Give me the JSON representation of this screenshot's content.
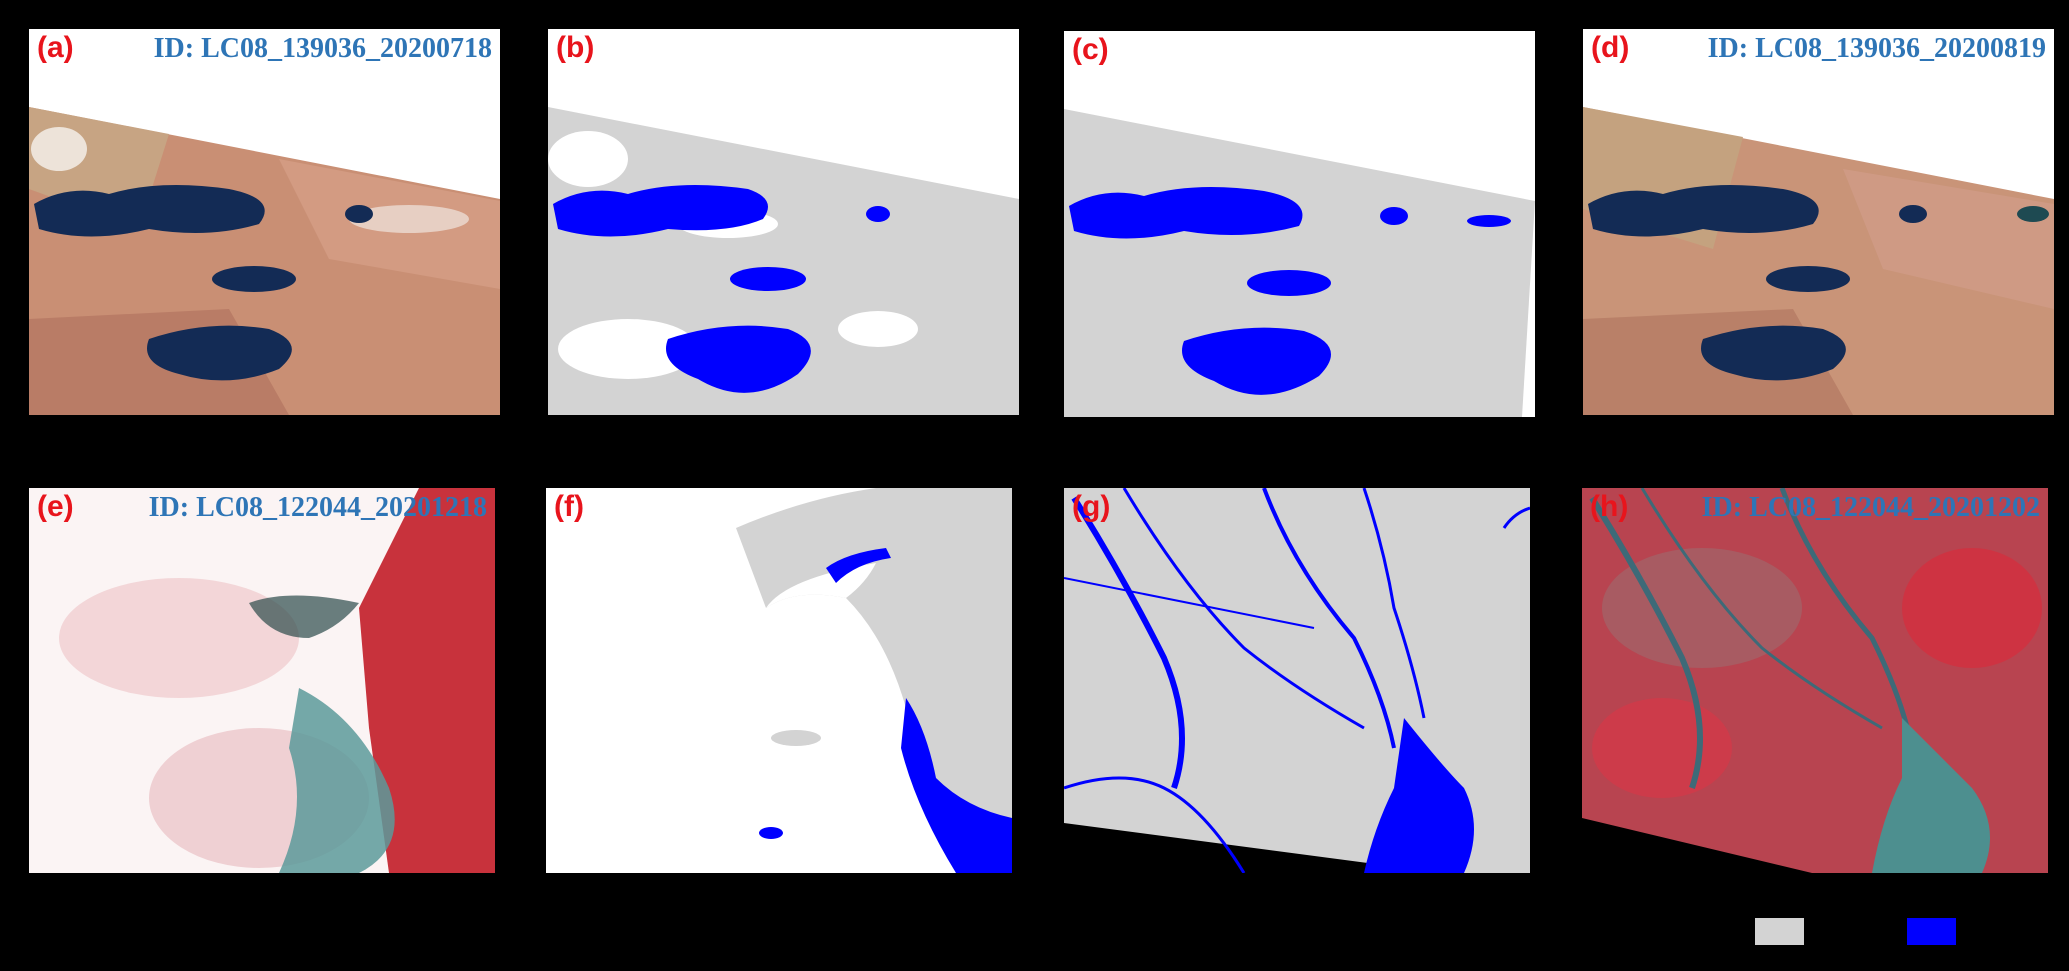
{
  "panels": [
    {
      "letter": "(a)",
      "scene_id": "ID: LC08_139036_20200718",
      "kind": "satellite image"
    },
    {
      "letter": "(b)",
      "scene_id": "",
      "kind": "water mask"
    },
    {
      "letter": "(c)",
      "scene_id": "",
      "kind": "water mask"
    },
    {
      "letter": "(d)",
      "scene_id": "ID: LC08_139036_20200819",
      "kind": "satellite image"
    },
    {
      "letter": "(e)",
      "scene_id": "ID: LC08_122044_20201218",
      "kind": "satellite image"
    },
    {
      "letter": "(f)",
      "scene_id": "",
      "kind": "water mask"
    },
    {
      "letter": "(g)",
      "scene_id": "",
      "kind": "water mask"
    },
    {
      "letter": "(h)",
      "scene_id": "ID: LC08_122044_20201202",
      "kind": "satellite image"
    }
  ],
  "legend": {
    "land_color": "#d3d3d3",
    "water_color": "#0000ff"
  },
  "colors": {
    "background": "#000000",
    "letter_label": "#e8141c",
    "scene_id_label": "#2e75b6",
    "cloud_free": "#ffffff"
  }
}
